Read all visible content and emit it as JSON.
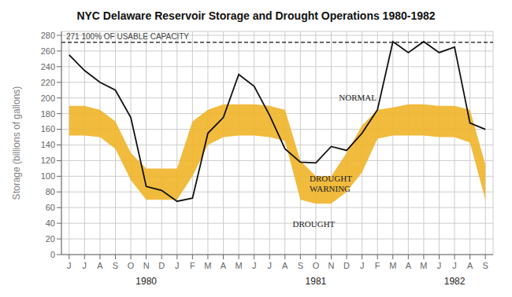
{
  "chart_data": {
    "type": "line",
    "title": "NYC Delaware Reservoir Storage and Drought Operations 1980-1982",
    "y_label": "Storage (billions of gallons)",
    "categories": [
      "J",
      "J",
      "A",
      "S",
      "O",
      "N",
      "D",
      "J",
      "F",
      "M",
      "A",
      "M",
      "J",
      "J",
      "A",
      "S",
      "O",
      "N",
      "D",
      "J",
      "F",
      "M",
      "A",
      "M",
      "J",
      "J",
      "A",
      "S"
    ],
    "series": [
      {
        "type": "band",
        "color": "#f0b429",
        "upper": [
          190,
          190,
          185,
          170,
          130,
          110,
          110,
          110,
          170,
          185,
          192,
          192,
          192,
          190,
          185,
          120,
          100,
          100,
          130,
          165,
          185,
          188,
          192,
          192,
          190,
          190,
          185,
          115
        ],
        "lower": [
          152,
          152,
          150,
          135,
          95,
          70,
          70,
          70,
          100,
          140,
          150,
          152,
          152,
          150,
          145,
          70,
          65,
          65,
          80,
          105,
          148,
          152,
          152,
          152,
          150,
          150,
          143,
          70
        ]
      },
      {
        "type": "line",
        "color": "#111111",
        "values": [
          255,
          235,
          220,
          210,
          175,
          87,
          82,
          68,
          72,
          155,
          175,
          230,
          215,
          178,
          135,
          118,
          117,
          138,
          133,
          155,
          185,
          272,
          258,
          272,
          258,
          265,
          168,
          160
        ]
      }
    ],
    "ylim": [
      0,
      285
    ],
    "yticks": [
      0,
      20,
      40,
      60,
      80,
      100,
      120,
      140,
      160,
      180,
      200,
      220,
      240,
      260,
      280
    ],
    "grid": true,
    "reference_lines": [
      {
        "y": 271,
        "label": "271   100% OF USABLE CAPACITY",
        "line_style": "dashed",
        "color": "#111111"
      }
    ],
    "annotations": [
      {
        "text": "NORMAL",
        "x": 17.5,
        "y": 200
      },
      {
        "text": "DROUGHT\nWARNING",
        "x": 15.6,
        "y": 90
      },
      {
        "text": "DROUGHT",
        "x": 14.5,
        "y": 38
      }
    ],
    "year_labels": [
      {
        "label": "1980",
        "x": 5
      },
      {
        "label": "1981",
        "x": 16
      },
      {
        "label": "1982",
        "x": 25
      }
    ]
  }
}
